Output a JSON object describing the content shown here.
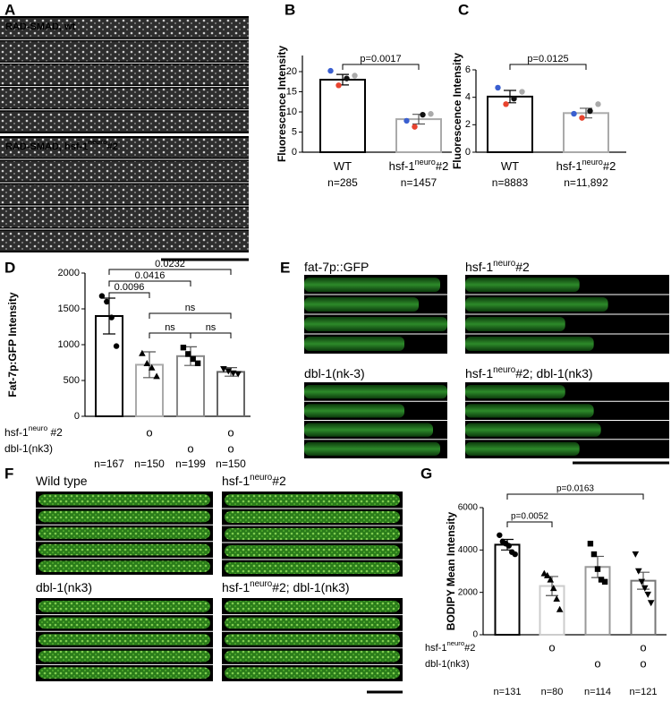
{
  "panels": {
    "A": {
      "label": "A",
      "captions": [
        {
          "text": "RAD-SMAD, wt"
        },
        {
          "text": "RAD-SMAD, hsf-1",
          "sup": "neuro",
          "after": "#2"
        }
      ]
    },
    "E": {
      "label": "E",
      "captions": [
        {
          "text": "fat-7p::GFP"
        },
        {
          "text": "hsf-1",
          "sup": "neuro",
          "after": "#2"
        },
        {
          "text": "dbl-1(nk-3)"
        },
        {
          "text": "hsf-1",
          "sup": "neuro",
          "after": "#2; dbl-1(nk3)"
        }
      ]
    },
    "F": {
      "label": "F",
      "captions": [
        {
          "text": "Wild type"
        },
        {
          "text": "hsf-1",
          "sup": "neuro",
          "after": "#2"
        },
        {
          "text": "dbl-1(nk3)"
        },
        {
          "text": "hsf-1",
          "sup": "neuro",
          "after": "#2; dbl-1(nk3)"
        }
      ]
    }
  },
  "chart_data": [
    {
      "type": "bar",
      "panel": "B",
      "ylabel": "Fluorescence Intensity",
      "categories": [
        {
          "text": "WT"
        },
        {
          "text": "hsf-1",
          "sup": "neuro",
          "after": "#2"
        }
      ],
      "n_labels": [
        "n=285",
        "n=1457"
      ],
      "values": [
        18,
        8.2
      ],
      "errors": [
        1.3,
        1.2
      ],
      "colors": [
        "#000000",
        "#aaaaaa"
      ],
      "points": [
        [
          20.2,
          16.6,
          18.3,
          19.0
        ],
        [
          7.8,
          6.3,
          9.3,
          9.5
        ]
      ],
      "point_colors": [
        "#3a5fd0",
        "#e8432e",
        "#111111",
        "#aaaaaa"
      ],
      "ylim": [
        0,
        24
      ],
      "yticks": [
        0,
        5,
        10,
        15,
        20
      ],
      "comparisons": [
        {
          "groups": [
            0,
            1
          ],
          "label": "p=0.0017"
        }
      ]
    },
    {
      "type": "bar",
      "panel": "C",
      "ylabel": "Fluorescence Intensity",
      "categories": [
        {
          "text": "WT"
        },
        {
          "text": "hsf-1",
          "sup": "neuro",
          "after": "#2"
        }
      ],
      "n_labels": [
        "n=8883",
        "n=11,892"
      ],
      "values": [
        4.05,
        2.85
      ],
      "errors": [
        0.45,
        0.35
      ],
      "colors": [
        "#000000",
        "#aaaaaa"
      ],
      "points": [
        [
          4.7,
          3.5,
          3.9,
          4.4
        ],
        [
          2.8,
          2.5,
          3.0,
          3.5
        ]
      ],
      "point_colors": [
        "#3a5fd0",
        "#e8432e",
        "#111111",
        "#aaaaaa"
      ],
      "ylim": [
        0,
        6
      ],
      "yticks": [
        0,
        2,
        4,
        6
      ],
      "comparisons": [
        {
          "groups": [
            0,
            1
          ],
          "label": "p=0.0125"
        }
      ]
    },
    {
      "type": "bar",
      "panel": "D",
      "ylabel": "Fat-7p:GFP Intensity",
      "categories": [
        null,
        null,
        null,
        null
      ],
      "n_labels": [
        "n=167",
        "n=150",
        "n=199",
        "n=150"
      ],
      "values": [
        1400,
        720,
        840,
        620
      ],
      "errors": [
        250,
        180,
        130,
        60
      ],
      "colors": [
        "#000000",
        "#aaaaaa",
        "#888888",
        "#666666"
      ],
      "points": [
        [
          1680,
          1600,
          1380,
          980
        ],
        [
          880,
          740,
          680,
          560
        ],
        [
          960,
          870,
          800,
          740
        ],
        [
          660,
          630,
          600,
          590
        ]
      ],
      "point_color": "#000000",
      "point_shapes": [
        "circle",
        "triangle",
        "square",
        "triangle-down"
      ],
      "ylim": [
        0,
        2000
      ],
      "yticks": [
        0,
        500,
        1000,
        1500,
        2000
      ],
      "comparisons": [
        {
          "groups": [
            0,
            3
          ],
          "label": "0.0232"
        },
        {
          "groups": [
            0,
            2
          ],
          "label": "0.0416"
        },
        {
          "groups": [
            0,
            1
          ],
          "label": "0.0096"
        },
        {
          "groups": [
            1,
            3
          ],
          "label": "ns"
        },
        {
          "groups": [
            1,
            2
          ],
          "label": "ns"
        },
        {
          "groups": [
            2,
            3
          ],
          "label": "ns"
        }
      ],
      "genotypes": [
        {
          "label": {
            "text": "hsf-1",
            "sup": "neuro",
            "after": " #2"
          },
          "marks": [
            null,
            "o",
            null,
            "o"
          ]
        },
        {
          "label": {
            "text": "dbl-1(nk3)"
          },
          "marks": [
            null,
            null,
            "o",
            "o"
          ]
        }
      ]
    },
    {
      "type": "bar",
      "panel": "G",
      "ylabel": "BODIPY Mean Intensity",
      "categories": [
        null,
        null,
        null,
        null
      ],
      "n_labels": [
        "n=131",
        "n=80",
        "n=114",
        "n=121"
      ],
      "values": [
        4250,
        2300,
        3200,
        2550
      ],
      "errors": [
        250,
        450,
        500,
        400
      ],
      "colors": [
        "#000000",
        "#cccccc",
        "#999999",
        "#777777"
      ],
      "points": [
        [
          4700,
          4400,
          4300,
          4200,
          3900,
          3800
        ],
        [
          2900,
          2800,
          2600,
          2200,
          1700,
          1200
        ],
        [
          4300,
          3800,
          3100,
          2600,
          2500
        ],
        [
          3800,
          3000,
          2500,
          2200,
          1900,
          1500
        ]
      ],
      "point_color": "#000000",
      "point_shapes": [
        "circle",
        "triangle",
        "square",
        "triangle-down"
      ],
      "ylim": [
        0,
        6000
      ],
      "yticks": [
        0,
        2000,
        4000,
        6000
      ],
      "comparisons": [
        {
          "groups": [
            0,
            1
          ],
          "label": "p=0.0052"
        },
        {
          "groups": [
            0,
            3
          ],
          "label": "p=0.0163"
        }
      ],
      "genotypes": [
        {
          "label": {
            "text": "hsf-1",
            "sup": "neuro",
            "after": "#2"
          },
          "marks": [
            null,
            "o",
            null,
            "o"
          ]
        },
        {
          "label": {
            "text": "dbl-1(nk3)"
          },
          "marks": [
            null,
            null,
            "o",
            "o"
          ]
        }
      ]
    }
  ]
}
